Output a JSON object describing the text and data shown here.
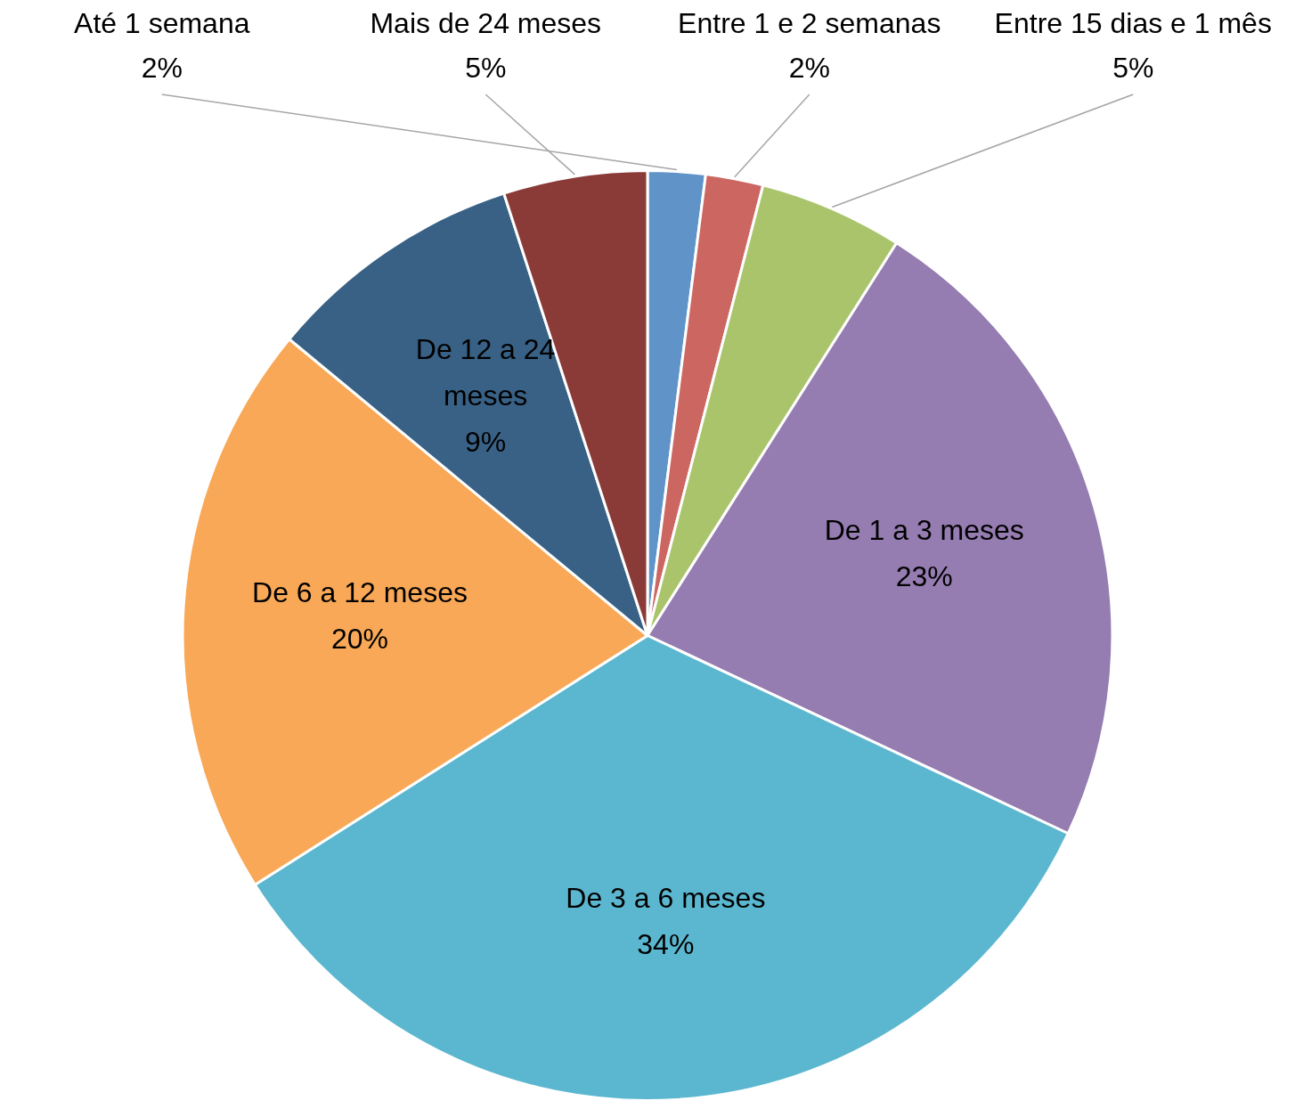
{
  "chart_data": {
    "type": "pie",
    "categories": [
      "Até 1 semana",
      "Entre 1 e 2 semanas",
      "Entre 15 dias e 1 mês",
      "De 1 a 3 meses",
      "De 3 a 6 meses",
      "De 6 a 12 meses",
      "De 12 a 24 meses",
      "Mais de 24 meses"
    ],
    "values": [
      2,
      2,
      5,
      23,
      34,
      20,
      9,
      5
    ],
    "value_labels": [
      "2%",
      "2%",
      "5%",
      "23%",
      "34%",
      "20%",
      "9%",
      "5%"
    ],
    "colors": [
      "#6094c9",
      "#cc6661",
      "#aac46c",
      "#957cb1",
      "#5bb7cf",
      "#f8a856",
      "#386185",
      "#8a3a37"
    ],
    "legend": false
  }
}
